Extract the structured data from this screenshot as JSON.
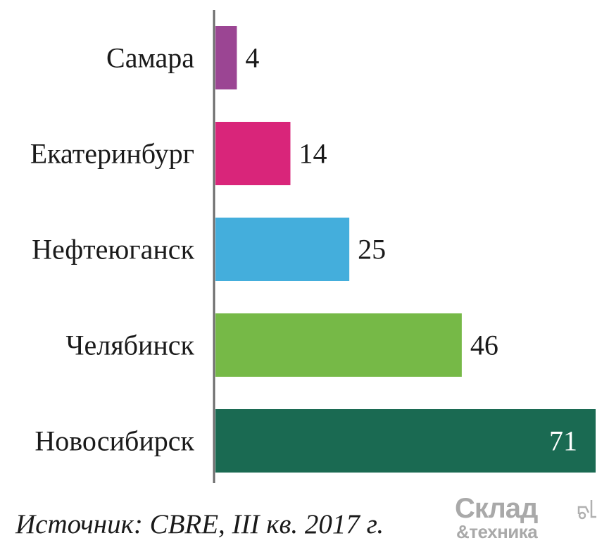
{
  "chart_data": {
    "type": "bar",
    "orientation": "horizontal",
    "categories": [
      "Самара",
      "Екатеринбург",
      "Нефтеюганск",
      "Челябинск",
      "Новосибирск"
    ],
    "values": [
      4,
      14,
      25,
      46,
      71
    ],
    "colors": [
      "#9b4593",
      "#d9257a",
      "#44aedc",
      "#76b947",
      "#1a6a52"
    ],
    "xlim": [
      0,
      71
    ],
    "grid": false,
    "legend": "none"
  },
  "source": "Источник: CBRE, III кв. 2017 г.",
  "logo": {
    "line1": "Склад",
    "line2": "&техника"
  }
}
